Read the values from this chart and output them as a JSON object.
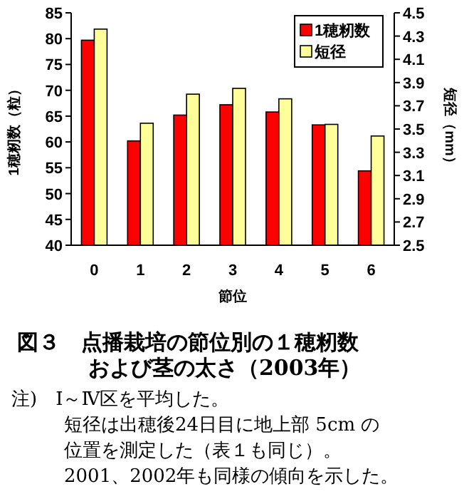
{
  "chart_data": {
    "type": "bar",
    "title": "図３　点播栽培の節位別の１穂籾数および茎の太さ（2003年）",
    "xlabel": "節位",
    "ylabel": "1穂籾数（粒）",
    "y2label": "短径（mm）",
    "categories": [
      "0",
      "1",
      "2",
      "3",
      "4",
      "5",
      "6"
    ],
    "series": [
      {
        "name": "1穂籾数",
        "color": "#ff0000",
        "values": [
          79.7,
          60.2,
          65.2,
          67.2,
          65.8,
          63.3,
          54.4
        ]
      },
      {
        "name": "短径",
        "color": "#ffff99",
        "axis": "y2",
        "values": [
          4.36,
          3.55,
          3.8,
          3.85,
          3.76,
          3.54,
          3.44
        ]
      }
    ],
    "ylim": [
      40,
      85
    ],
    "yticks": [
      40,
      45,
      50,
      55,
      60,
      65,
      70,
      75,
      80,
      85
    ],
    "y2lim": [
      2.5,
      4.5
    ],
    "y2ticks": [
      {
        "value": 2.5,
        "label": "2.5"
      },
      {
        "value": 2.7,
        "label": "2.7"
      },
      {
        "value": 2.9,
        "label": "2.9"
      },
      {
        "value": 3.1,
        "label": "3.1"
      },
      {
        "value": 3.3,
        "label": "3.3"
      },
      {
        "value": 3.5,
        "label": "3.5"
      },
      {
        "value": 3.7,
        "label": "3.7"
      },
      {
        "value": 3.9,
        "label": "3.9"
      },
      {
        "value": 4.1,
        "label": "4.1"
      },
      {
        "value": 4.3,
        "label": "4.3"
      },
      {
        "value": 4.5,
        "label": "4.5"
      }
    ],
    "legend": "top right",
    "grid": false,
    "annotations": [
      "注)　Ⅰ～Ⅳ区を平均した。",
      "短径は出穂後24日目に地上部 5cm の",
      "位置を測定した（表１も同じ）。",
      "2001、2002年も同様の傾向を示した。"
    ]
  }
}
